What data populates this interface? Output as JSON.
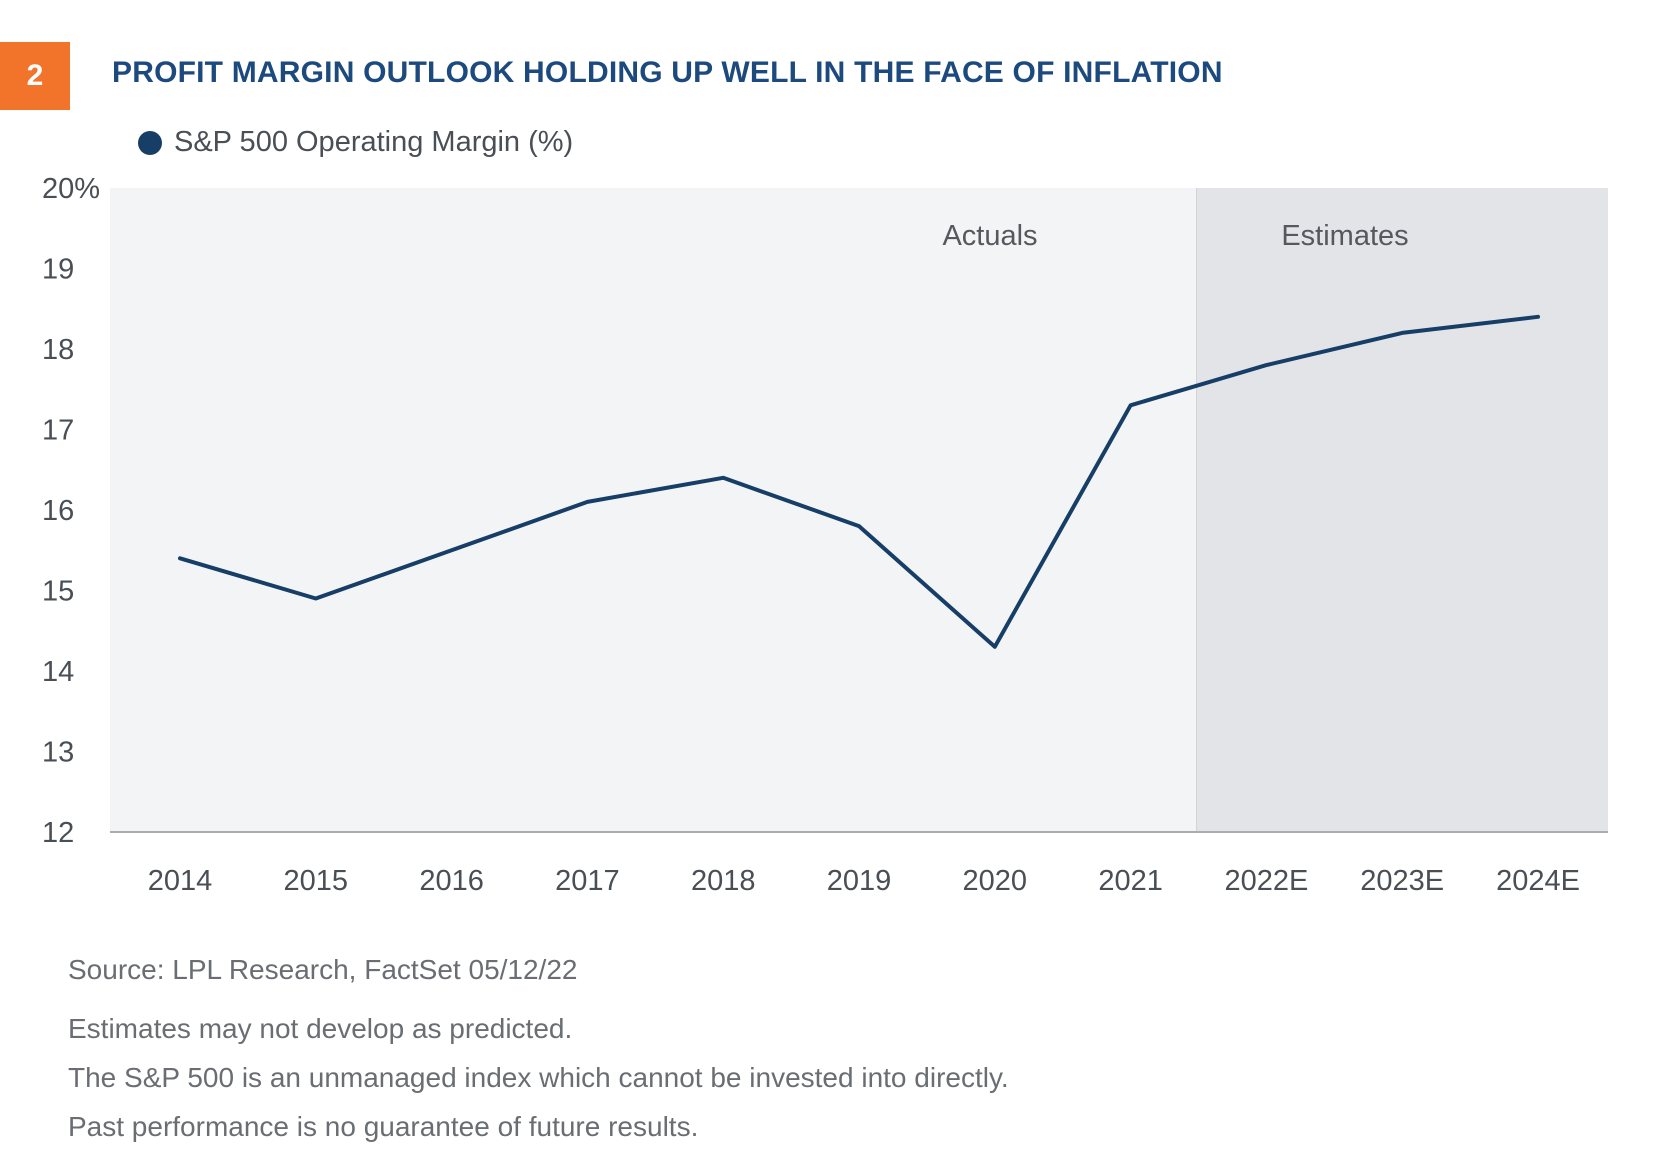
{
  "badge": "2",
  "title": "PROFIT MARGIN OUTLOOK HOLDING UP WELL IN THE FACE OF INFLATION",
  "legend_label": "S&P 500 Operating Margin (%)",
  "colors": {
    "line": "#173e66",
    "actuals_bg": "#f3f4f6",
    "estimates_bg": "#e3e4e8",
    "badge": "#f2742b",
    "title": "#1d4a7e"
  },
  "chart_data": {
    "type": "line",
    "categories": [
      "2014",
      "2015",
      "2016",
      "2017",
      "2018",
      "2019",
      "2020",
      "2021",
      "2022E",
      "2023E",
      "2024E"
    ],
    "series": [
      {
        "name": "S&P 500 Operating Margin (%)",
        "values": [
          15.4,
          14.9,
          15.5,
          16.1,
          16.4,
          15.8,
          14.3,
          17.3,
          17.8,
          18.2,
          18.4
        ]
      }
    ],
    "ylim": [
      12,
      20
    ],
    "yticks": [
      "20%",
      "19",
      "18",
      "17",
      "16",
      "15",
      "14",
      "13",
      "12"
    ],
    "regions": [
      {
        "label": "Actuals",
        "from": "2014",
        "to": "2021"
      },
      {
        "label": "Estimates",
        "from": "2022E",
        "to": "2024E"
      }
    ],
    "grid": false,
    "legend": "top-left"
  },
  "notes": {
    "source": "Source: LPL Research, FactSet  05/12/22",
    "lines": [
      "Estimates may not develop as predicted.",
      "The S&P 500 is an unmanaged index which cannot be invested into directly.",
      "Past performance is no guarantee of future results."
    ]
  }
}
